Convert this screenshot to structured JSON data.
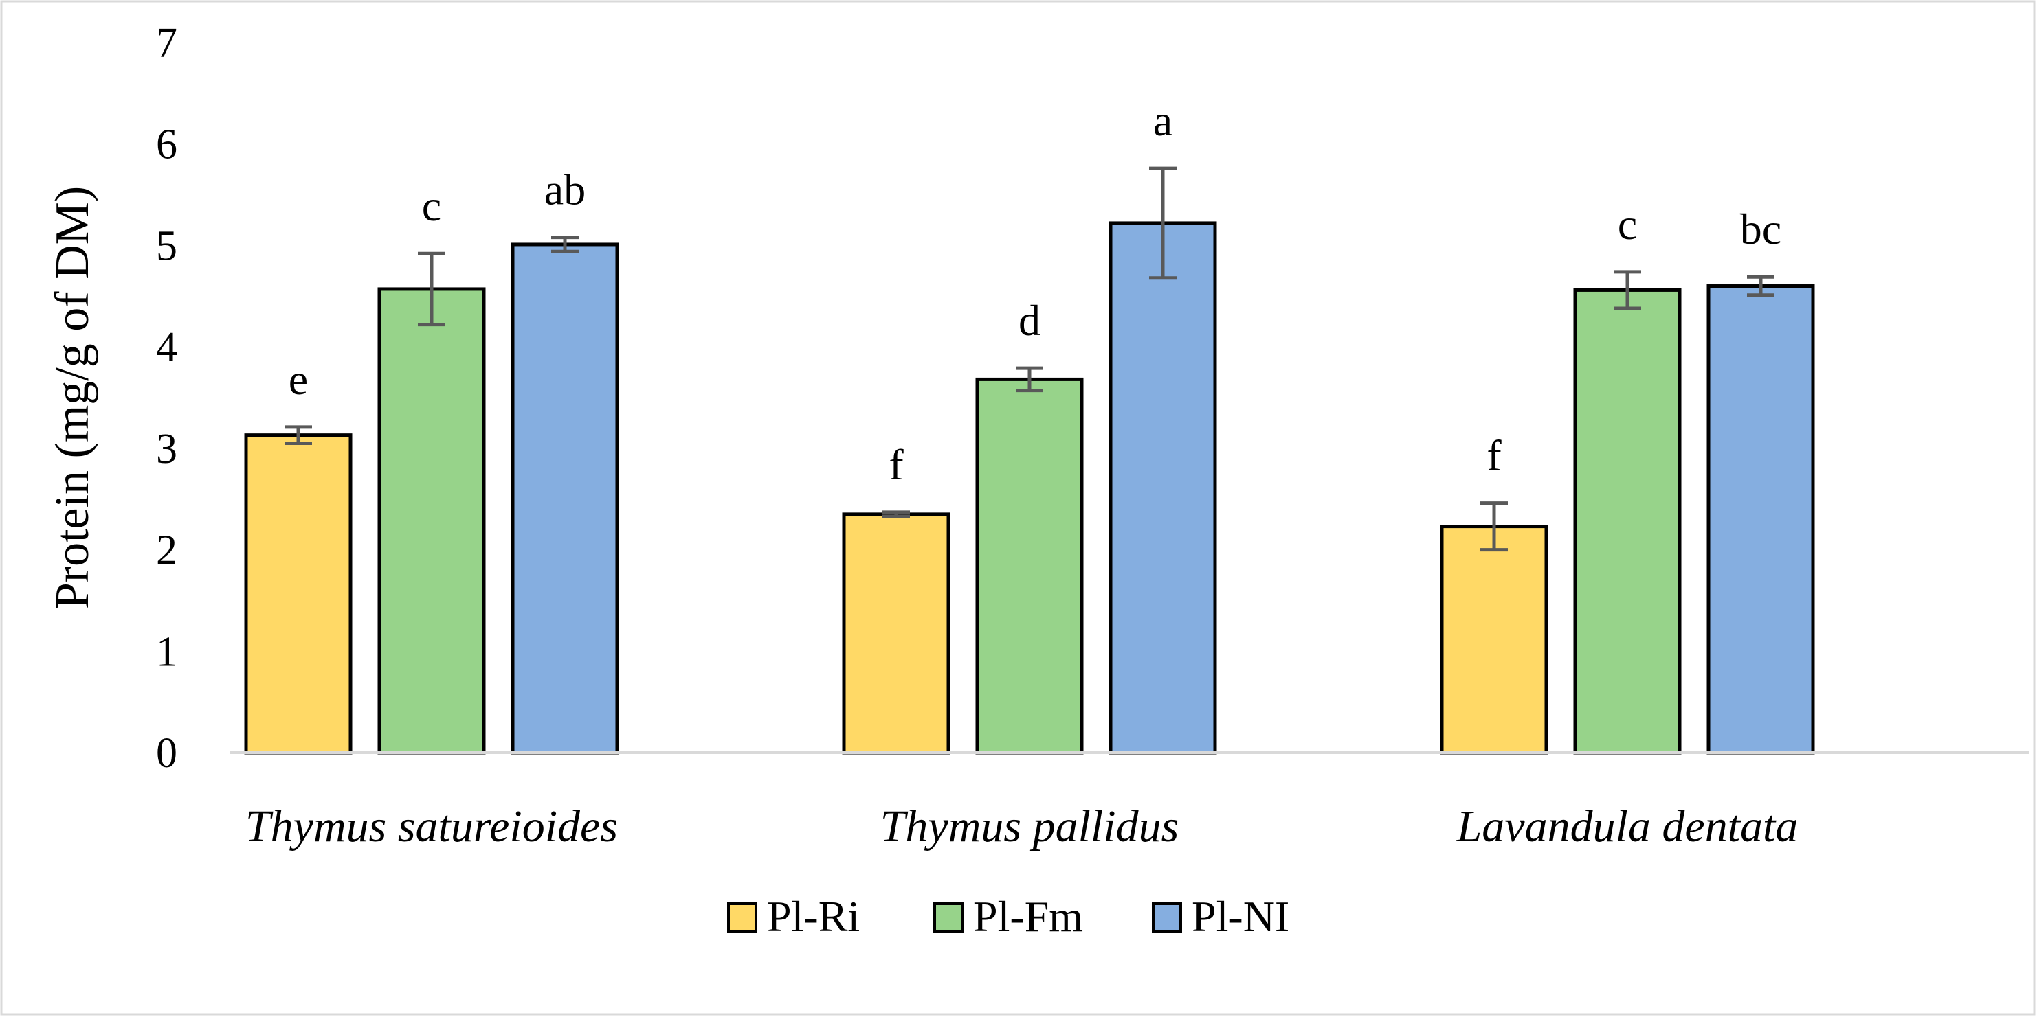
{
  "chart_data": {
    "type": "bar",
    "title": "",
    "xlabel": "",
    "ylabel": "Protein (mg/g of DM)",
    "ylim": [
      0,
      7
    ],
    "yticks": [
      0,
      1,
      2,
      3,
      4,
      5,
      6,
      7
    ],
    "grid": false,
    "legend_position": "bottom-center",
    "categories": [
      "Thymus satureioides",
      "Thymus pallidus",
      "Lavandula dentata"
    ],
    "series": [
      {
        "name": "Pl-Ri",
        "color": "#FFD966",
        "values": [
          3.13,
          2.35,
          2.23
        ],
        "errors": [
          0.08,
          0.02,
          0.23
        ],
        "significance": [
          "e",
          "f",
          "f"
        ]
      },
      {
        "name": "Pl-Fm",
        "color": "#97D38A",
        "values": [
          4.57,
          3.68,
          4.56
        ],
        "errors": [
          0.35,
          0.11,
          0.18
        ],
        "significance": [
          "c",
          "d",
          "c"
        ]
      },
      {
        "name": "Pl-NI",
        "color": "#85AEE0",
        "values": [
          5.01,
          5.22,
          4.6
        ],
        "errors": [
          0.07,
          0.54,
          0.09
        ],
        "significance": [
          "ab",
          "a",
          "bc"
        ]
      }
    ]
  }
}
